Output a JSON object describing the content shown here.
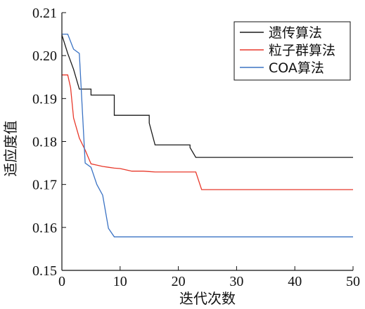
{
  "chart_data": {
    "type": "line",
    "title": "",
    "xlabel": "迭代次数",
    "ylabel": "适应度值",
    "xlim": [
      0,
      50
    ],
    "ylim": [
      0.15,
      0.21
    ],
    "xticks": [
      0,
      10,
      20,
      30,
      40,
      50
    ],
    "xtick_labels": [
      "0",
      "10",
      "20",
      "30",
      "40",
      "50"
    ],
    "yticks": [
      0.15,
      0.16,
      0.17,
      0.18,
      0.19,
      0.2,
      0.21
    ],
    "ytick_labels": [
      "0.15",
      "0.16",
      "0.17",
      "0.18",
      "0.19",
      "0.20",
      "0.21"
    ],
    "grid": false,
    "legend_position": "top-right",
    "series": [
      {
        "name": "遗传算法",
        "color": "#1a1a1a",
        "x": [
          0,
          1,
          2,
          3,
          5,
          5,
          9,
          9,
          15,
          15,
          16,
          16,
          22,
          22,
          23,
          50
        ],
        "y": [
          0.2048,
          0.2005,
          0.1968,
          0.1922,
          0.1922,
          0.1908,
          0.1908,
          0.1861,
          0.1861,
          0.1843,
          0.1792,
          0.1792,
          0.1792,
          0.1786,
          0.1763,
          0.1763
        ]
      },
      {
        "name": "粒子群算法",
        "color": "#e8392b",
        "x": [
          0,
          1,
          1.5,
          2,
          3,
          4,
          5,
          6,
          7,
          8,
          9,
          10,
          11,
          12,
          14,
          15,
          16,
          18,
          23,
          24,
          50
        ],
        "y": [
          0.1955,
          0.1955,
          0.1925,
          0.1855,
          0.1808,
          0.178,
          0.1748,
          0.1745,
          0.1742,
          0.174,
          0.1738,
          0.1737,
          0.1734,
          0.1731,
          0.1731,
          0.173,
          0.1729,
          0.1729,
          0.1729,
          0.1688,
          0.1688
        ]
      },
      {
        "name": "COA算法",
        "color": "#3b73c4",
        "x": [
          0,
          1,
          2,
          3,
          4,
          5,
          6,
          7,
          8,
          9,
          10,
          50
        ],
        "y": [
          0.205,
          0.205,
          0.2015,
          0.2005,
          0.175,
          0.174,
          0.17,
          0.1675,
          0.1598,
          0.1578,
          0.1578,
          0.1578
        ]
      }
    ]
  }
}
